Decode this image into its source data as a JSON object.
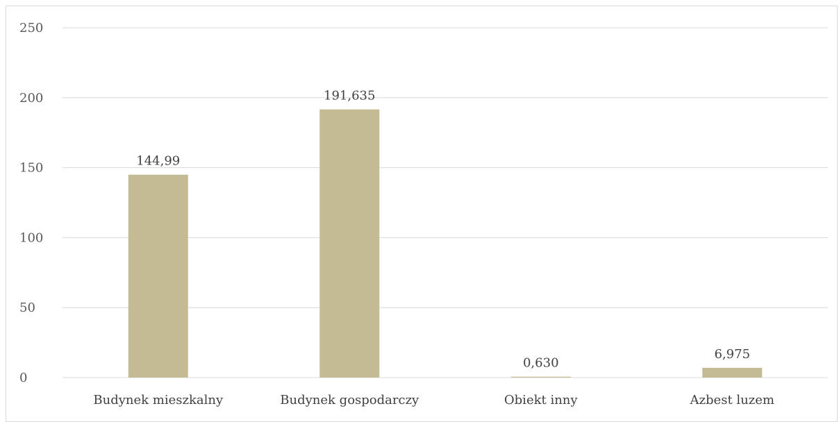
{
  "chart_data": {
    "type": "bar",
    "title": "",
    "xlabel": "",
    "ylabel": "",
    "categories": [
      "Budynek mieszkalny",
      "Budynek gospodarczy",
      "Obiekt inny",
      "Azbest luzem"
    ],
    "values": [
      144.99,
      191.635,
      0.63,
      6.975
    ],
    "data_labels": [
      "144,99",
      "191,635",
      "0,630",
      "6,975"
    ],
    "ylim": [
      0,
      250
    ],
    "yticks": [
      0,
      50,
      100,
      150,
      200,
      250
    ],
    "ytick_labels": [
      "0",
      "50",
      "100",
      "150",
      "200",
      "250"
    ],
    "grid": true,
    "legend": "none",
    "bar_color": "#c4bb94",
    "grid_color": "#d9d9d9"
  }
}
